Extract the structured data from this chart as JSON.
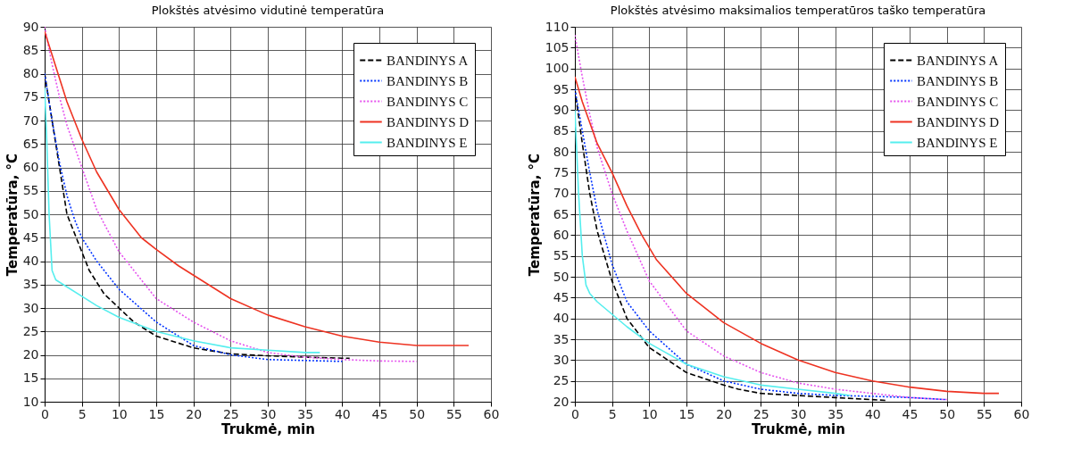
{
  "chart_data": [
    {
      "type": "line",
      "title": "Plokštės  atvėsimo vidutinė temperatūra",
      "xlabel": "Trukmė, min",
      "ylabel": "Temperatūra, °C",
      "xlim": [
        0,
        60
      ],
      "xticks": [
        0,
        5,
        10,
        15,
        20,
        25,
        30,
        35,
        40,
        45,
        50,
        55,
        60
      ],
      "ylim": [
        10,
        90
      ],
      "yticks": [
        10,
        15,
        20,
        25,
        30,
        35,
        40,
        45,
        50,
        55,
        60,
        65,
        70,
        75,
        80,
        85,
        90
      ],
      "grid": true,
      "legend": "top right",
      "series": [
        {
          "name": "BANDINYS A",
          "color": "#000000",
          "line_style": "dashed",
          "x": [
            0,
            1,
            2,
            3,
            4,
            5,
            6,
            8,
            10,
            12,
            15,
            20,
            25,
            30,
            35,
            40,
            41
          ],
          "values": [
            80,
            70,
            60,
            50,
            46,
            42,
            38,
            33,
            30,
            27,
            24,
            21.5,
            20.2,
            19.8,
            19.5,
            19.3,
            19.3
          ]
        },
        {
          "name": "BANDINYS B",
          "color": "#0033ff",
          "line_style": "dotted",
          "x": [
            0,
            1,
            2,
            3,
            4,
            5,
            7,
            10,
            15,
            20,
            25,
            30,
            35,
            40
          ],
          "values": [
            80,
            70,
            61,
            54,
            49,
            45,
            40,
            34,
            27,
            22,
            20,
            19,
            18.8,
            18.6
          ]
        },
        {
          "name": "BANDINYS C",
          "color": "#e552ee",
          "line_style": "dotted",
          "x": [
            0,
            1,
            2,
            3,
            5,
            7,
            10,
            15,
            20,
            25,
            30,
            35,
            40,
            45,
            50
          ],
          "values": [
            90,
            82,
            75,
            69,
            60,
            51,
            42,
            32,
            27,
            23,
            20.5,
            19.5,
            19,
            18.7,
            18.6
          ]
        },
        {
          "name": "BANDINYS D",
          "color": "#ee3322",
          "line_style": "solid",
          "x": [
            0,
            1,
            2,
            3,
            5,
            7,
            10,
            13,
            15,
            18,
            20,
            25,
            30,
            35,
            40,
            45,
            50,
            55,
            57
          ],
          "values": [
            89,
            84,
            79,
            74,
            66,
            59,
            51,
            45,
            42.5,
            39,
            37,
            32,
            28.5,
            26,
            24,
            22.7,
            22,
            22,
            22
          ]
        },
        {
          "name": "BANDINYS E",
          "color": "#55eeee",
          "line_style": "solid",
          "x": [
            0,
            0.3,
            0.6,
            1,
            1.5,
            2.5,
            5,
            7,
            10,
            15,
            20,
            25,
            30,
            35,
            37
          ],
          "values": [
            77,
            65,
            50,
            38,
            36,
            35,
            32.5,
            30.5,
            28,
            25,
            23,
            21.5,
            21,
            20.5,
            20.5
          ]
        }
      ]
    },
    {
      "type": "line",
      "title": "Plokštės atvėsimo maksimalios temperatūros taško temperatūra",
      "xlabel": "Trukmė, min",
      "ylabel": "Temperatūra, °C",
      "xlim": [
        0,
        60
      ],
      "xticks": [
        0,
        5,
        10,
        15,
        20,
        25,
        30,
        35,
        40,
        45,
        50,
        55,
        60
      ],
      "ylim": [
        20,
        110
      ],
      "yticks": [
        20,
        25,
        30,
        35,
        40,
        45,
        50,
        55,
        60,
        65,
        70,
        75,
        80,
        85,
        90,
        95,
        100,
        105,
        110
      ],
      "grid": true,
      "legend": "top right",
      "series": [
        {
          "name": "BANDINYS A",
          "color": "#000000",
          "line_style": "dashed",
          "x": [
            0,
            1,
            2,
            3,
            4,
            5,
            7,
            10,
            15,
            20,
            22,
            25,
            30,
            35,
            40,
            42
          ],
          "values": [
            95,
            82,
            70,
            61,
            55,
            49,
            40,
            33,
            27,
            24,
            23,
            22,
            21.5,
            21,
            20.5,
            20.3
          ]
        },
        {
          "name": "BANDINYS B",
          "color": "#0033ff",
          "line_style": "dotted",
          "x": [
            0,
            1,
            2,
            3,
            5,
            7,
            10,
            15,
            20,
            25,
            30,
            35,
            40,
            45,
            50
          ],
          "values": [
            95,
            85,
            75,
            66,
            53,
            44,
            37,
            29,
            25,
            23,
            22,
            21.5,
            21.3,
            21,
            20.5
          ]
        },
        {
          "name": "BANDINYS C",
          "color": "#e552ee",
          "line_style": "dotted",
          "x": [
            0,
            1,
            2,
            3,
            5,
            7,
            10,
            15,
            20,
            25,
            30,
            35,
            40,
            45,
            50
          ],
          "values": [
            108,
            98,
            89,
            81,
            70,
            61,
            49,
            37,
            31,
            27,
            24.5,
            23,
            22,
            21,
            20.5
          ]
        },
        {
          "name": "BANDINYS D",
          "color": "#ee3322",
          "line_style": "solid",
          "x": [
            0,
            1,
            2,
            3,
            5,
            7,
            9,
            11,
            15,
            20,
            25,
            30,
            35,
            40,
            45,
            50,
            55,
            57
          ],
          "values": [
            98,
            92,
            87,
            82,
            75,
            67,
            60,
            54,
            46,
            39,
            34,
            30,
            27,
            25,
            23.5,
            22.5,
            22,
            22
          ]
        },
        {
          "name": "BANDINYS E",
          "color": "#55eeee",
          "line_style": "solid",
          "x": [
            0,
            0.5,
            1,
            1.5,
            2,
            3,
            5,
            7,
            10,
            15,
            20,
            25,
            30,
            35,
            37
          ],
          "values": [
            90,
            70,
            55,
            48,
            46,
            44,
            41,
            38,
            34,
            29,
            26,
            24,
            23,
            22,
            21.5
          ]
        }
      ]
    }
  ]
}
